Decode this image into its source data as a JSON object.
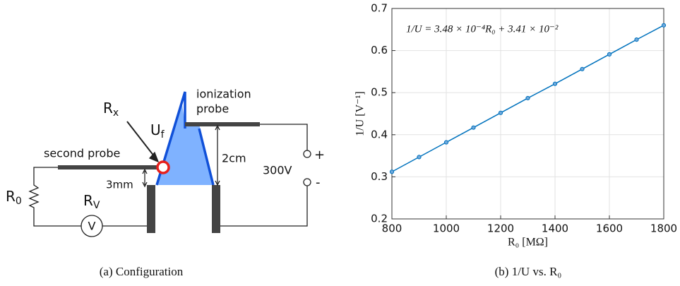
{
  "diagram": {
    "probe_left": "second probe",
    "probe_right_line1": "ionization",
    "probe_right_line2": "probe",
    "rx": {
      "main": "R",
      "sub": "x"
    },
    "uf": {
      "main": "U",
      "sub": "f"
    },
    "r0": {
      "main": "R",
      "sub": "0"
    },
    "rv": {
      "main": "R",
      "sub": "V"
    },
    "voltmeter": "V",
    "gap": "3mm",
    "height": "2cm",
    "supply": "300V",
    "plus": "+",
    "minus": "-"
  },
  "chart_data": {
    "type": "line",
    "x": [
      800,
      900,
      1000,
      1100,
      1200,
      1300,
      1400,
      1500,
      1600,
      1700,
      1800
    ],
    "series": [
      {
        "color": "#0072bd",
        "values": [
          0.312,
          0.347,
          0.382,
          0.417,
          0.452,
          0.487,
          0.521,
          0.556,
          0.591,
          0.626,
          0.66
        ]
      }
    ],
    "xlim": [
      800,
      1800
    ],
    "ylim": [
      0.2,
      0.7
    ],
    "xticks": [
      800,
      1000,
      1200,
      1400,
      1600,
      1800
    ],
    "yticks": [
      0.2,
      0.3,
      0.4,
      0.5,
      0.6,
      0.7
    ],
    "grid": true,
    "xlabel": "R₀ [MΩ]",
    "ylabel": "1/U [V⁻¹]",
    "annotation": "1/U = 3.48 × 10⁻⁴R₀ + 3.41 × 10⁻²"
  },
  "captions": [
    "(a) Configuration",
    "(b) 1/U vs. R₀"
  ]
}
